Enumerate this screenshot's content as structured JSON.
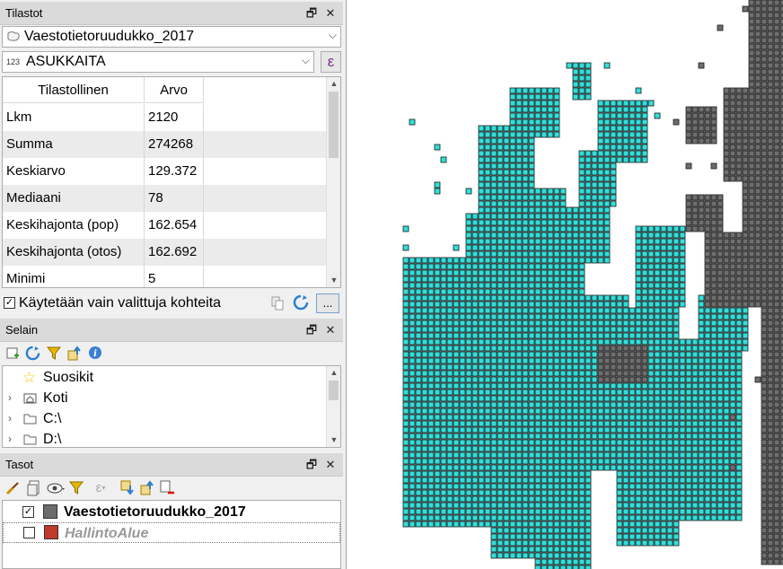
{
  "stats_panel": {
    "title": "Tilastot",
    "layer_combo": "Vaestotietoruudukko_2017",
    "field_prefix": "123",
    "field_combo": "ASUKKAITA",
    "expr_button": "ε",
    "columns": [
      "Tilastollinen",
      "Arvo"
    ],
    "rows": [
      {
        "name": "Lkm",
        "value": "2120"
      },
      {
        "name": "Summa",
        "value": "274268"
      },
      {
        "name": "Keskiarvo",
        "value": "129.372"
      },
      {
        "name": "Mediaani",
        "value": "78"
      },
      {
        "name": "Keskihajonta (pop)",
        "value": "162.654"
      },
      {
        "name": "Keskihajonta (otos)",
        "value": "162.692"
      },
      {
        "name": "Minimi",
        "value": "5"
      }
    ],
    "selected_only_label": "Käytetään vain valittuja kohteita",
    "more_button": "..."
  },
  "browser_panel": {
    "title": "Selain",
    "items": [
      {
        "label": "Suosikit",
        "icon": "star-icon"
      },
      {
        "label": "Koti",
        "icon": "home-folder-icon"
      },
      {
        "label": "C:\\",
        "icon": "drive-icon"
      },
      {
        "label": "D:\\",
        "icon": "drive-icon"
      }
    ]
  },
  "layers_panel": {
    "title": "Tasot",
    "layers": [
      {
        "name": "Vaestotietoruudukko_2017",
        "checked": true,
        "color": "#6b6b6b"
      },
      {
        "name": "HallintoAlue",
        "checked": false,
        "color": "#c0392b"
      }
    ]
  },
  "map": {
    "fill_cyan": "#2ee0db",
    "fill_gray": "#6e6e6e",
    "outline": "#1a1a1a",
    "background": "#ffffff"
  }
}
